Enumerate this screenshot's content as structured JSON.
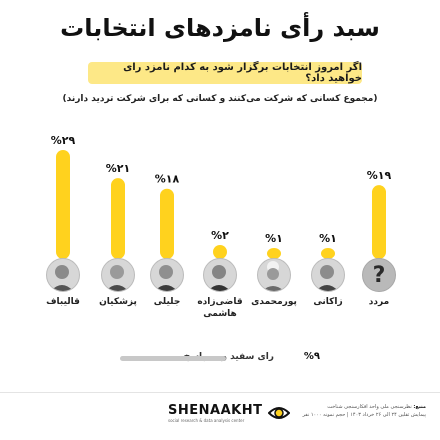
{
  "title": "سبد رأی نامزدهای انتخابات",
  "question": "اگر امروز انتخابات برگزار شود به کدام نامزد رای خواهید داد؟",
  "subtitle": "(مجموع کسانی که شرکت می‌کنند و کسانی که برای شرکت تردید دارند)",
  "colors": {
    "bar": "#ffd21e",
    "band": "#fde887",
    "blank": "#c8c8c8"
  },
  "chart_data": {
    "type": "bar",
    "categories": [
      "قالیباف",
      "پزشکیان",
      "جلیلی",
      "قاضی‌زاده هاشمی",
      "پورمحمدی",
      "زاکانی",
      "مردد"
    ],
    "values": [
      29,
      21,
      18,
      2,
      1,
      1,
      19
    ],
    "value_labels": [
      "%۲۹",
      "%۲۱",
      "%۱۸",
      "%۲",
      "%۱",
      "%۱",
      "%۱۹"
    ],
    "ylim": [
      0,
      29
    ],
    "grid": false
  },
  "candidates": [
    {
      "name": "قالیباف",
      "icon": "person-photo"
    },
    {
      "name": "پزشکیان",
      "icon": "person-photo"
    },
    {
      "name": "جلیلی",
      "icon": "person-photo"
    },
    {
      "name_line1": "قاضی‌زاده",
      "name_line2": "هاشمی",
      "icon": "person-photo"
    },
    {
      "name": "پورمحمدی",
      "icon": "person-photo"
    },
    {
      "name": "زاکانی",
      "icon": "person-photo"
    },
    {
      "name": "مردد",
      "icon": "question-mark",
      "symbol": "?"
    }
  ],
  "blank_vote": {
    "label": "رای سفید و بی‌پاسخ",
    "value": 9,
    "value_label": "%۹"
  },
  "brand": {
    "name": "SHENAAKHT",
    "tagline": "social research & data analysis center"
  },
  "source": {
    "label": "منبع:",
    "line1": "نظرسنجی ملی واحد افکارسنجی شناخت",
    "line2": "پیمایش ثقلین ۲۴ الی ۲۶ خرداد ۱۴۰۳ | حجم نمونه ۱۰۰۰ نفر"
  }
}
